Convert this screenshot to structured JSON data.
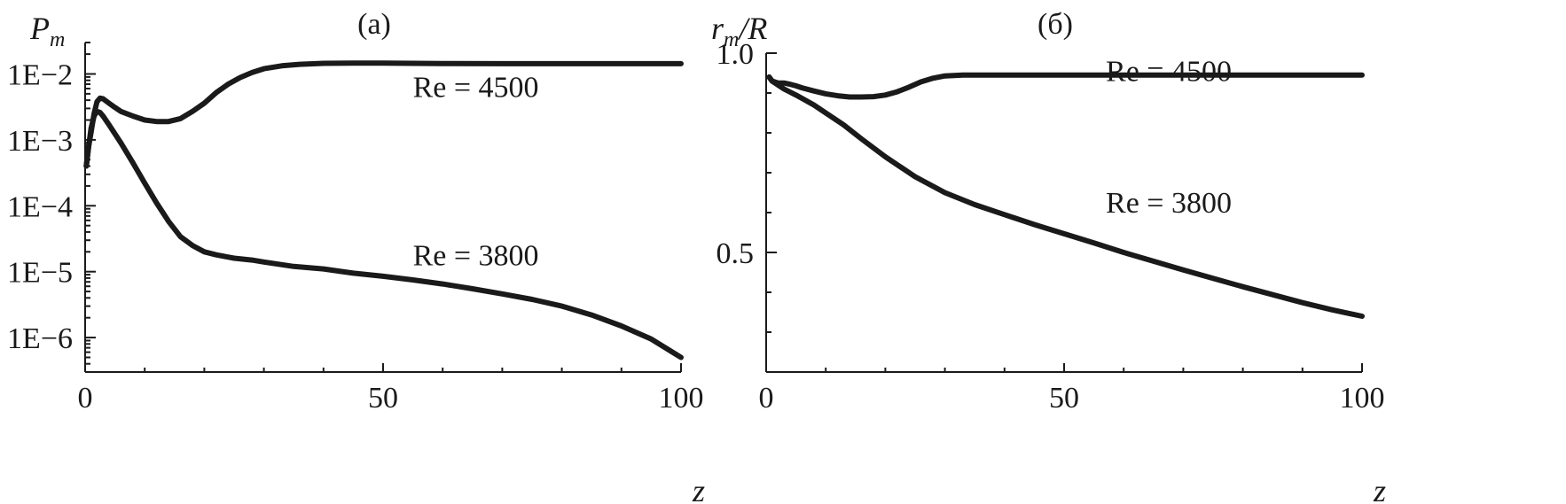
{
  "chart_data": [
    {
      "type": "line",
      "panel_title": "(а)",
      "xlabel": "z",
      "ylabel_main": "P",
      "ylabel_sub": "m",
      "xlim": [
        0,
        100
      ],
      "ylim": [
        3e-07,
        0.03
      ],
      "yscale": "log",
      "x_ticks": [
        0,
        50,
        100
      ],
      "x_tick_labels": [
        "0",
        "50",
        "100"
      ],
      "y_ticks": [
        0.01,
        0.001,
        0.0001,
        1e-05,
        1e-06
      ],
      "y_tick_labels": [
        "1E−2",
        "1E−3",
        "1E−4",
        "1E−5",
        "1E−6"
      ],
      "grid": false,
      "series": [
        {
          "name": "Re = 4500",
          "label_at": [
            55,
            0.0045
          ],
          "x": [
            0.2,
            0.6,
            1,
            1.5,
            2,
            2.5,
            3,
            4,
            5,
            6,
            8,
            10,
            12,
            14,
            16,
            18,
            20,
            22,
            24,
            26,
            28,
            30,
            33,
            36,
            40,
            45,
            50,
            55,
            60,
            70,
            80,
            90,
            100
          ],
          "y": [
            0.0004,
            0.0008,
            0.0013,
            0.0025,
            0.0038,
            0.0043,
            0.0042,
            0.0036,
            0.0031,
            0.0027,
            0.0023,
            0.002,
            0.0019,
            0.0019,
            0.0021,
            0.0027,
            0.0036,
            0.0052,
            0.007,
            0.0088,
            0.0105,
            0.012,
            0.0133,
            0.014,
            0.0145,
            0.0146,
            0.0146,
            0.0145,
            0.0144,
            0.0143,
            0.0143,
            0.0143,
            0.0143
          ]
        },
        {
          "name": "Re = 3800",
          "label_at": [
            55,
            1.25e-05
          ],
          "x": [
            0.2,
            0.6,
            1,
            1.5,
            2,
            2.5,
            3,
            4,
            6,
            8,
            10,
            12,
            14,
            16,
            18,
            20,
            22,
            25,
            28,
            30,
            35,
            40,
            45,
            50,
            55,
            60,
            65,
            70,
            75,
            80,
            85,
            90,
            95,
            100
          ],
          "y": [
            0.0004,
            0.0008,
            0.0015,
            0.0023,
            0.0027,
            0.0026,
            0.0023,
            0.0017,
            0.0009,
            0.00045,
            0.00022,
            0.00011,
            5.8e-05,
            3.4e-05,
            2.5e-05,
            2e-05,
            1.8e-05,
            1.6e-05,
            1.5e-05,
            1.4e-05,
            1.2e-05,
            1.1e-05,
            9.5e-06,
            8.5e-06,
            7.5e-06,
            6.5e-06,
            5.5e-06,
            4.6e-06,
            3.8e-06,
            3e-06,
            2.2e-06,
            1.5e-06,
            9.5e-07,
            5e-07
          ]
        }
      ]
    },
    {
      "type": "line",
      "panel_title": "(б)",
      "xlabel": "z",
      "ylabel_main": "r",
      "ylabel_sub": "m",
      "ylabel_tail": "/R",
      "xlim": [
        0,
        100
      ],
      "ylim": [
        0.2,
        1.0
      ],
      "yscale": "linear",
      "x_ticks": [
        0,
        50,
        100
      ],
      "x_tick_labels": [
        "0",
        "50",
        "100"
      ],
      "y_ticks": [
        1.0,
        0.5
      ],
      "y_tick_labels": [
        "1.0",
        "0.5"
      ],
      "grid": false,
      "series": [
        {
          "name": "Re = 4500",
          "label_at": [
            57,
            0.93
          ],
          "x": [
            0.5,
            1,
            2,
            3,
            4,
            5,
            6,
            8,
            10,
            12,
            14,
            16,
            18,
            20,
            22,
            24,
            26,
            28,
            30,
            33,
            36,
            40,
            50,
            60,
            70,
            80,
            90,
            100
          ],
          "y": [
            0.94,
            0.93,
            0.925,
            0.925,
            0.922,
            0.918,
            0.913,
            0.905,
            0.898,
            0.893,
            0.89,
            0.89,
            0.891,
            0.895,
            0.903,
            0.915,
            0.928,
            0.937,
            0.943,
            0.945,
            0.945,
            0.945,
            0.945,
            0.945,
            0.945,
            0.945,
            0.945,
            0.945
          ]
        },
        {
          "name": "Re = 3800",
          "label_at": [
            57,
            0.6
          ],
          "x": [
            0.5,
            1,
            2,
            3,
            5,
            8,
            10,
            13,
            16,
            20,
            25,
            30,
            35,
            40,
            45,
            50,
            55,
            60,
            65,
            70,
            75,
            80,
            85,
            90,
            95,
            100
          ],
          "y": [
            0.94,
            0.93,
            0.92,
            0.91,
            0.895,
            0.87,
            0.85,
            0.82,
            0.785,
            0.74,
            0.69,
            0.65,
            0.62,
            0.595,
            0.57,
            0.547,
            0.524,
            0.5,
            0.478,
            0.456,
            0.435,
            0.414,
            0.394,
            0.374,
            0.356,
            0.34
          ]
        }
      ]
    }
  ]
}
